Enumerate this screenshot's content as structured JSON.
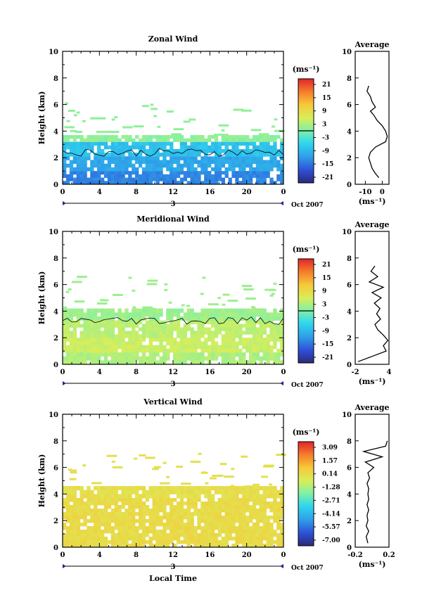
{
  "chart_data": [
    {
      "type": "heatmap",
      "title": "Zonal Wind",
      "ylabel": "Height (km)",
      "xticks": [
        "0",
        "4",
        "8",
        "12",
        "16",
        "20",
        "0"
      ],
      "yticks": [
        "0",
        "2",
        "4",
        "6",
        "8",
        "10"
      ],
      "ylim": [
        0,
        10
      ],
      "xlim": [
        0,
        24
      ],
      "date_label": "3",
      "date_right": "Oct 2007",
      "colorbar_unit": "(ms⁻¹)",
      "colorbar_ticks": [
        "21",
        "15",
        "9",
        "3",
        "-3",
        "-9",
        "-15",
        "-21"
      ],
      "colorbar_range": [
        -24,
        24
      ],
      "zero_contour_height": 2.4,
      "layers": [
        {
          "from_km": 0.0,
          "to_km": 1.0,
          "value": -14
        },
        {
          "from_km": 1.0,
          "to_km": 2.1,
          "value": -11
        },
        {
          "from_km": 2.1,
          "to_km": 3.2,
          "value": -8
        },
        {
          "from_km": 3.2,
          "to_km": 3.7,
          "value": 1
        }
      ],
      "average": {
        "title": "Average",
        "xlabel": "(ms⁻¹)",
        "xticks": [
          "-10",
          "0"
        ],
        "xlim": [
          -16,
          4
        ],
        "profile_heights_km": [
          0.5,
          0.8,
          1.2,
          1.6,
          2.0,
          2.4,
          2.8,
          3.2,
          3.6,
          4.0,
          4.4,
          4.8,
          5.2,
          5.5,
          5.8,
          6.2,
          6.6,
          7.0,
          7.4
        ],
        "profile_values": [
          -2,
          -4,
          -6,
          -7,
          -8,
          -7,
          -4,
          2,
          3,
          2,
          0,
          -3,
          -5,
          -7,
          -4,
          -6,
          -7,
          -9,
          -8
        ]
      }
    },
    {
      "type": "heatmap",
      "title": "Meridional Wind",
      "ylabel": "Height (km)",
      "xticks": [
        "0",
        "4",
        "8",
        "12",
        "16",
        "20",
        "0"
      ],
      "yticks": [
        "0",
        "2",
        "4",
        "6",
        "8",
        "10"
      ],
      "ylim": [
        0,
        10
      ],
      "xlim": [
        0,
        24
      ],
      "date_label": "3",
      "date_right": "Oct 2007",
      "colorbar_unit": "(ms⁻¹)",
      "colorbar_ticks": [
        "21",
        "15",
        "9",
        "3",
        "-3",
        "-9",
        "-15",
        "-21"
      ],
      "colorbar_range": [
        -24,
        24
      ],
      "zero_contour_height": 3.3,
      "layers": [
        {
          "from_km": 0.0,
          "to_km": 0.9,
          "value": 3
        },
        {
          "from_km": 0.9,
          "to_km": 2.0,
          "value": 5
        },
        {
          "from_km": 2.0,
          "to_km": 3.3,
          "value": 4
        },
        {
          "from_km": 3.3,
          "to_km": 4.2,
          "value": 2
        }
      ],
      "average": {
        "title": "Average",
        "xlabel": "(ms⁻¹)",
        "xticks": [
          "-2",
          "4"
        ],
        "xlim": [
          -2,
          4
        ],
        "profile_heights_km": [
          0.2,
          0.6,
          1.0,
          1.4,
          1.8,
          2.2,
          2.6,
          3.0,
          3.4,
          3.8,
          4.2,
          4.6,
          5.0,
          5.4,
          5.8,
          6.2,
          6.6,
          7.0,
          7.4
        ],
        "profile_values": [
          -1.5,
          1,
          3.5,
          3,
          3.8,
          3,
          2,
          1.5,
          2.5,
          1.8,
          2.4,
          1.4,
          2.6,
          1,
          3,
          0.5,
          2,
          0.8,
          1.5
        ]
      }
    },
    {
      "type": "heatmap",
      "title": "Vertical Wind",
      "ylabel": "Height (km)",
      "xlabel": "Local Time",
      "xticks": [
        "0",
        "4",
        "8",
        "12",
        "16",
        "20",
        "0"
      ],
      "yticks": [
        "0",
        "2",
        "4",
        "6",
        "8",
        "10"
      ],
      "ylim": [
        0,
        10
      ],
      "xlim": [
        0,
        24
      ],
      "date_label": "3",
      "date_right": "Oct 2007",
      "colorbar_unit": "(ms⁻¹)",
      "colorbar_ticks": [
        "3.09",
        "1.57",
        "0.14",
        "-1.28",
        "-2.71",
        "-4.14",
        "-5.57",
        "-7.00"
      ],
      "colorbar_range": [
        -8.4,
        4.5
      ],
      "layers": [
        {
          "from_km": 0.0,
          "to_km": 3.7,
          "value": 0.5
        },
        {
          "from_km": 3.7,
          "to_km": 4.6,
          "value": 0.3
        }
      ],
      "average": {
        "title": "Average",
        "xlabel": "(ms⁻¹)",
        "xticks": [
          "-0.2",
          "0.2"
        ],
        "xlim": [
          -0.2,
          0.2
        ],
        "profile_heights_km": [
          0.3,
          0.8,
          1.2,
          1.6,
          2.0,
          2.4,
          2.8,
          3.2,
          3.6,
          4.0,
          4.4,
          4.8,
          5.2,
          5.6,
          6.0,
          6.4,
          6.8,
          7.2,
          7.6,
          8.0
        ],
        "profile_values": [
          -0.05,
          -0.07,
          -0.04,
          -0.07,
          -0.05,
          -0.06,
          -0.04,
          -0.06,
          -0.04,
          -0.05,
          -0.04,
          -0.06,
          -0.03,
          -0.05,
          0.02,
          -0.08,
          0.12,
          -0.1,
          0.16,
          0.18
        ]
      }
    }
  ]
}
